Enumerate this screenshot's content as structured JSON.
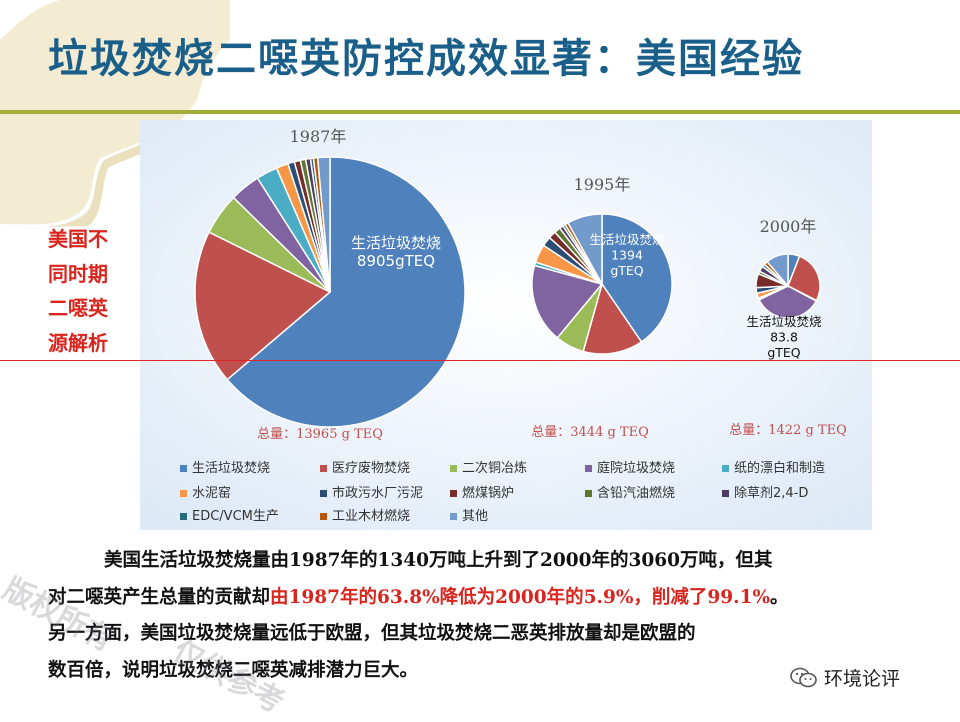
{
  "title": "垃圾焚烧二噁英防控成效显著：美国经验",
  "side_note": [
    "美国不",
    "同时期",
    "二噁英",
    "源解析"
  ],
  "chart_data": [
    {
      "type": "pie",
      "title": "1987年",
      "categories": [
        "生活垃圾焚烧",
        "医疗废物焚烧",
        "二次铜冶炼",
        "庭院垃圾焚烧",
        "纸的漂白和制造",
        "水泥窑",
        "市政污水厂污泥",
        "燃煤锅炉",
        "含铅汽油燃烧",
        "除草剂2,4-D",
        "EDC/VCM生产",
        "工业木材燃烧",
        "其他"
      ],
      "values": [
        8905,
        2590,
        700,
        510,
        356,
        200,
        110,
        100,
        90,
        80,
        50,
        70,
        204
      ],
      "slice_label": "生活垃圾焚烧\n8905gTEQ",
      "total_label": "总量：13965 g TEQ"
    },
    {
      "type": "pie",
      "title": "1995年",
      "categories": [
        "生活垃圾焚烧",
        "医疗废物焚烧",
        "二次铜冶炼",
        "庭院垃圾焚烧",
        "纸的漂白和制造",
        "水泥窑",
        "市政污水厂污泥",
        "燃煤锅炉",
        "含铅汽油燃烧",
        "除草剂2,4-D",
        "EDC/VCM生产",
        "工业木材燃烧",
        "其他"
      ],
      "values": [
        1394,
        477,
        231,
        628,
        28,
        145,
        76,
        60,
        50,
        30,
        20,
        27,
        278
      ],
      "slice_label": "生活垃圾焚烧\n1394\ngTEQ",
      "total_label": "总量：3444 g TEQ"
    },
    {
      "type": "pie",
      "title": "2000年",
      "categories": [
        "生活垃圾焚烧",
        "医疗废物焚烧",
        "二次铜冶炼",
        "庭院垃圾焚烧",
        "纸的漂白和制造",
        "水泥窑",
        "市政污水厂污泥",
        "燃煤锅炉",
        "含铅汽油燃烧",
        "除草剂2,4-D",
        "EDC/VCM生产",
        "工业木材燃烧",
        "其他"
      ],
      "values": [
        83.8,
        378,
        5,
        499,
        12,
        37,
        40,
        100,
        20,
        40,
        20,
        27,
        160.2
      ],
      "slice_label": "生活垃圾焚烧\n83.8\ngTEQ",
      "total_label": "总量：1422 g TEQ"
    }
  ],
  "legend": {
    "placement": "bottom",
    "entries": [
      "生活垃圾焚烧",
      "医疗废物焚烧",
      "二次铜冶炼",
      "庭院垃圾焚烧",
      "纸的漂白和制造",
      "水泥窑",
      "市政污水厂污泥",
      "燃煤锅炉",
      "含铅汽油燃烧",
      "除草剂2,4-D",
      "EDC/VCM生产",
      "工业木材燃烧",
      "其他"
    ],
    "colors": [
      "#4f81bd",
      "#c0504d",
      "#9bbb59",
      "#8064a2",
      "#4bacc6",
      "#f79646",
      "#2c4d75",
      "#772c2a",
      "#5f7530",
      "#4d3b62",
      "#276a7c",
      "#b65708",
      "#729aca"
    ]
  },
  "body": {
    "line1": "美国生活垃圾焚烧量由1987年的1340万吨上升到了2000年的3060万吨，但其",
    "line2a": "对二噁英产生总量的贡献却",
    "line2b": "由1987年的63.8%降低为2000年的5.9%，削减了99.1%",
    "line2c": "。",
    "line3": "另一方面，美国垃圾焚烧量远低于欧盟，但其垃圾焚烧二恶英排放量却是欧盟的",
    "line4": "数百倍，说明垃圾焚烧二噁英减排潜力巨大。"
  },
  "watermarks": [
    "版权所有",
    "仅供参考"
  ],
  "brand": "环境论评",
  "colors": {
    "title": "#1a5f8a",
    "accent_red": "#d9251d",
    "rule_olive": "#a2ad3a"
  }
}
